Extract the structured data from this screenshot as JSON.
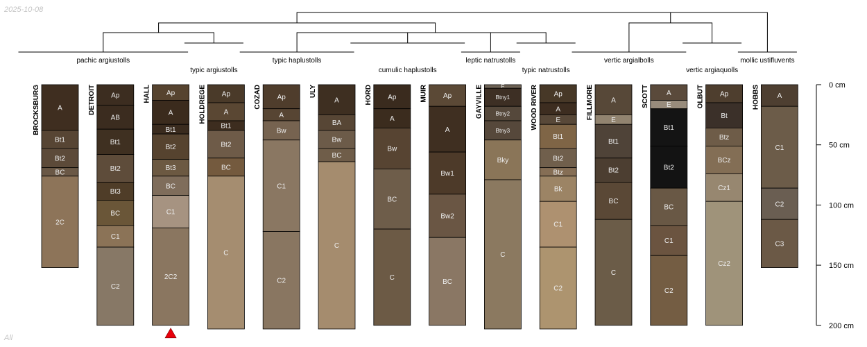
{
  "corner_date": "2025-10-08",
  "corner_footer": "All",
  "axis": {
    "ticks": [
      {
        "value": 0,
        "label": "0 cm"
      },
      {
        "value": 50,
        "label": "50 cm"
      },
      {
        "value": 100,
        "label": "100 cm"
      },
      {
        "value": 150,
        "label": "150 cm"
      },
      {
        "value": 200,
        "label": "200 cm"
      }
    ]
  },
  "chart_data": {
    "type": "soil-profile-sketch with dendrogram",
    "depth_unit": "cm",
    "ylim": [
      0,
      200
    ],
    "profiles": [
      {
        "name": "BROCKSBURG",
        "horizons": [
          {
            "name": "A",
            "top": 0,
            "bottom": 38,
            "color": "#3f2e20"
          },
          {
            "name": "Bt1",
            "top": 38,
            "bottom": 53,
            "color": "#574534"
          },
          {
            "name": "Bt2",
            "top": 53,
            "bottom": 69,
            "color": "#5c4a39"
          },
          {
            "name": "BC",
            "top": 69,
            "bottom": 76,
            "color": "#6a5846"
          },
          {
            "name": "2C",
            "top": 76,
            "bottom": 152,
            "color": "#8d7459"
          }
        ]
      },
      {
        "name": "DETROIT",
        "horizons": [
          {
            "name": "Ap",
            "top": 0,
            "bottom": 17,
            "color": "#3c2d20"
          },
          {
            "name": "AB",
            "top": 17,
            "bottom": 37,
            "color": "#3b2c1f"
          },
          {
            "name": "Bt1",
            "top": 37,
            "bottom": 58,
            "color": "#3f3021"
          },
          {
            "name": "Bt2",
            "top": 58,
            "bottom": 81,
            "color": "#5e4c3a"
          },
          {
            "name": "Bt3",
            "top": 81,
            "bottom": 96,
            "color": "#4f3d28"
          },
          {
            "name": "BC",
            "top": 96,
            "bottom": 117,
            "color": "#6a5638"
          },
          {
            "name": "C1",
            "top": 117,
            "bottom": 135,
            "color": "#8b7357"
          },
          {
            "name": "C2",
            "top": 135,
            "bottom": 200,
            "color": "#877866"
          }
        ]
      },
      {
        "name": "HALL",
        "marker": "red-triangle",
        "horizons": [
          {
            "name": "Ap",
            "top": 0,
            "bottom": 13,
            "color": "#56432f"
          },
          {
            "name": "A",
            "top": 13,
            "bottom": 33,
            "color": "#3b2b1d"
          },
          {
            "name": "Bt1",
            "top": 33,
            "bottom": 41,
            "color": "#3a2b1e"
          },
          {
            "name": "Bt2",
            "top": 41,
            "bottom": 62,
            "color": "#56432f"
          },
          {
            "name": "Bt3",
            "top": 62,
            "bottom": 76,
            "color": "#6c5942"
          },
          {
            "name": "BC",
            "top": 76,
            "bottom": 92,
            "color": "#7f6d5b"
          },
          {
            "name": "C1",
            "top": 92,
            "bottom": 119,
            "color": "#a69381"
          },
          {
            "name": "2C2",
            "top": 119,
            "bottom": 200,
            "color": "#8a7660"
          }
        ]
      },
      {
        "name": "HOLDREGE",
        "horizons": [
          {
            "name": "Ap",
            "top": 0,
            "bottom": 15,
            "color": "#4a3a29"
          },
          {
            "name": "A",
            "top": 15,
            "bottom": 30,
            "color": "#5a4733"
          },
          {
            "name": "Bt1",
            "top": 30,
            "bottom": 38,
            "color": "#3d2d1f"
          },
          {
            "name": "Bt2",
            "top": 38,
            "bottom": 61,
            "color": "#6e5b48"
          },
          {
            "name": "BC",
            "top": 61,
            "bottom": 76,
            "color": "#745a3e"
          },
          {
            "name": "C",
            "top": 76,
            "bottom": 203,
            "color": "#a58d70"
          }
        ]
      },
      {
        "name": "COZAD",
        "horizons": [
          {
            "name": "Ap",
            "top": 0,
            "bottom": 20,
            "color": "#4f3d2c"
          },
          {
            "name": "A",
            "top": 20,
            "bottom": 30,
            "color": "#574533"
          },
          {
            "name": "Bw",
            "top": 30,
            "bottom": 46,
            "color": "#766350"
          },
          {
            "name": "C1",
            "top": 46,
            "bottom": 122,
            "color": "#8a7762"
          },
          {
            "name": "C2",
            "top": 122,
            "bottom": 203,
            "color": "#897661"
          }
        ]
      },
      {
        "name": "ULY",
        "horizons": [
          {
            "name": "A",
            "top": 0,
            "bottom": 25,
            "color": "#3e2f21"
          },
          {
            "name": "BA",
            "top": 25,
            "bottom": 38,
            "color": "#574635"
          },
          {
            "name": "Bw",
            "top": 38,
            "bottom": 53,
            "color": "#6c5b49"
          },
          {
            "name": "BC",
            "top": 53,
            "bottom": 64,
            "color": "#6f5d49"
          },
          {
            "name": "C",
            "top": 64,
            "bottom": 203,
            "color": "#a58c6e"
          }
        ]
      },
      {
        "name": "HORD",
        "horizons": [
          {
            "name": "Ap",
            "top": 0,
            "bottom": 20,
            "color": "#3a2b1e"
          },
          {
            "name": "A",
            "top": 20,
            "bottom": 36,
            "color": "#3b2c1e"
          },
          {
            "name": "Bw",
            "top": 36,
            "bottom": 70,
            "color": "#574432"
          },
          {
            "name": "BC",
            "top": 70,
            "bottom": 120,
            "color": "#6e5d4a"
          },
          {
            "name": "C",
            "top": 120,
            "bottom": 200,
            "color": "#6c5a45"
          }
        ]
      },
      {
        "name": "MUIR",
        "horizons": [
          {
            "name": "Ap",
            "top": 0,
            "bottom": 18,
            "color": "#5b4936"
          },
          {
            "name": "A",
            "top": 18,
            "bottom": 56,
            "color": "#3f2f21"
          },
          {
            "name": "Bw1",
            "top": 56,
            "bottom": 91,
            "color": "#4d3a29"
          },
          {
            "name": "Bw2",
            "top": 91,
            "bottom": 127,
            "color": "#6a5644"
          },
          {
            "name": "BC",
            "top": 127,
            "bottom": 200,
            "color": "#8a7764"
          }
        ]
      },
      {
        "name": "GAYVILLE",
        "horizons": [
          {
            "name": "E",
            "top": 0,
            "bottom": 3,
            "color": "#6e6355"
          },
          {
            "name": "Btny1",
            "top": 3,
            "bottom": 18,
            "color": "#3d2f24"
          },
          {
            "name": "Btny2",
            "top": 18,
            "bottom": 30,
            "color": "#55483b"
          },
          {
            "name": "Btny3",
            "top": 30,
            "bottom": 46,
            "color": "#56483b"
          },
          {
            "name": "Bky",
            "top": 46,
            "bottom": 79,
            "color": "#8a7558"
          },
          {
            "name": "C",
            "top": 79,
            "bottom": 203,
            "color": "#8b7960"
          }
        ]
      },
      {
        "name": "WOOD RIVER",
        "horizons": [
          {
            "name": "Ap",
            "top": 0,
            "bottom": 15,
            "color": "#473827"
          },
          {
            "name": "A",
            "top": 15,
            "bottom": 25,
            "color": "#3d2d20"
          },
          {
            "name": "E",
            "top": 25,
            "bottom": 33,
            "color": "#584838"
          },
          {
            "name": "Bt1",
            "top": 33,
            "bottom": 53,
            "color": "#7f6546"
          },
          {
            "name": "Bt2",
            "top": 53,
            "bottom": 69,
            "color": "#705f4c"
          },
          {
            "name": "Btz",
            "top": 69,
            "bottom": 76,
            "color": "#856e55"
          },
          {
            "name": "Bk",
            "top": 76,
            "bottom": 97,
            "color": "#9c8465"
          },
          {
            "name": "C1",
            "top": 97,
            "bottom": 135,
            "color": "#ae9170"
          },
          {
            "name": "C2",
            "top": 135,
            "bottom": 203,
            "color": "#ad946f"
          }
        ]
      },
      {
        "name": "FILLMORE",
        "horizons": [
          {
            "name": "A",
            "top": 0,
            "bottom": 25,
            "color": "#574838"
          },
          {
            "name": "E",
            "top": 25,
            "bottom": 33,
            "color": "#928470"
          },
          {
            "name": "Bt1",
            "top": 33,
            "bottom": 61,
            "color": "#4f4338"
          },
          {
            "name": "Bt2",
            "top": 61,
            "bottom": 81,
            "color": "#4c3e31"
          },
          {
            "name": "BC",
            "top": 81,
            "bottom": 112,
            "color": "#5a4836"
          },
          {
            "name": "C",
            "top": 112,
            "bottom": 200,
            "color": "#6b5c48"
          }
        ]
      },
      {
        "name": "SCOTT",
        "horizons": [
          {
            "name": "A",
            "top": 0,
            "bottom": 13,
            "color": "#5a4a3b"
          },
          {
            "name": "E",
            "top": 13,
            "bottom": 20,
            "color": "#988c7c"
          },
          {
            "name": "Bt1",
            "top": 20,
            "bottom": 51,
            "color": "#141414"
          },
          {
            "name": "Bt2",
            "top": 51,
            "bottom": 86,
            "color": "#131313"
          },
          {
            "name": "BC",
            "top": 86,
            "bottom": 117,
            "color": "#695845"
          },
          {
            "name": "C1",
            "top": 117,
            "bottom": 142,
            "color": "#6b5440"
          },
          {
            "name": "C2",
            "top": 142,
            "bottom": 200,
            "color": "#745d43"
          }
        ]
      },
      {
        "name": "OLBUT",
        "horizons": [
          {
            "name": "Ap",
            "top": 0,
            "bottom": 15,
            "color": "#4e3e2e"
          },
          {
            "name": "Bt",
            "top": 15,
            "bottom": 36,
            "color": "#3b3029"
          },
          {
            "name": "Btz",
            "top": 36,
            "bottom": 51,
            "color": "#6e5c48"
          },
          {
            "name": "BCz",
            "top": 51,
            "bottom": 74,
            "color": "#836e55"
          },
          {
            "name": "Cz1",
            "top": 74,
            "bottom": 97,
            "color": "#978770"
          },
          {
            "name": "Cz2",
            "top": 97,
            "bottom": 200,
            "color": "#9f937a"
          }
        ]
      },
      {
        "name": "HOBBS",
        "horizons": [
          {
            "name": "A",
            "top": 0,
            "bottom": 18,
            "color": "#4e3f31"
          },
          {
            "name": "C1",
            "top": 18,
            "bottom": 86,
            "color": "#6c5c49"
          },
          {
            "name": "C2",
            "top": 86,
            "bottom": 112,
            "color": "#6a5e52"
          },
          {
            "name": "C3",
            "top": 112,
            "bottom": 152,
            "color": "#6b5946"
          }
        ]
      }
    ],
    "groups": [
      {
        "label": "pachic argiustolls",
        "profiles": [
          "BROCKSBURG",
          "DETROIT",
          "HALL"
        ]
      },
      {
        "label": "typic argiustolls",
        "profiles": [
          "HOLDREGE"
        ]
      },
      {
        "label": "typic haplustolls",
        "profiles": [
          "COZAD",
          "ULY"
        ]
      },
      {
        "label": "cumulic haplustolls",
        "profiles": [
          "HORD",
          "MUIR"
        ]
      },
      {
        "label": "leptic natrustolls",
        "profiles": [
          "GAYVILLE"
        ]
      },
      {
        "label": "typic natrustolls",
        "profiles": [
          "WOOD RIVER"
        ]
      },
      {
        "label": "vertic argialbolls",
        "profiles": [
          "FILLMORE",
          "SCOTT"
        ]
      },
      {
        "label": "vertic argiaquolls",
        "profiles": [
          "OLBUT"
        ]
      },
      {
        "label": "mollic ustifluvents",
        "profiles": [
          "HOBBS"
        ]
      }
    ]
  }
}
